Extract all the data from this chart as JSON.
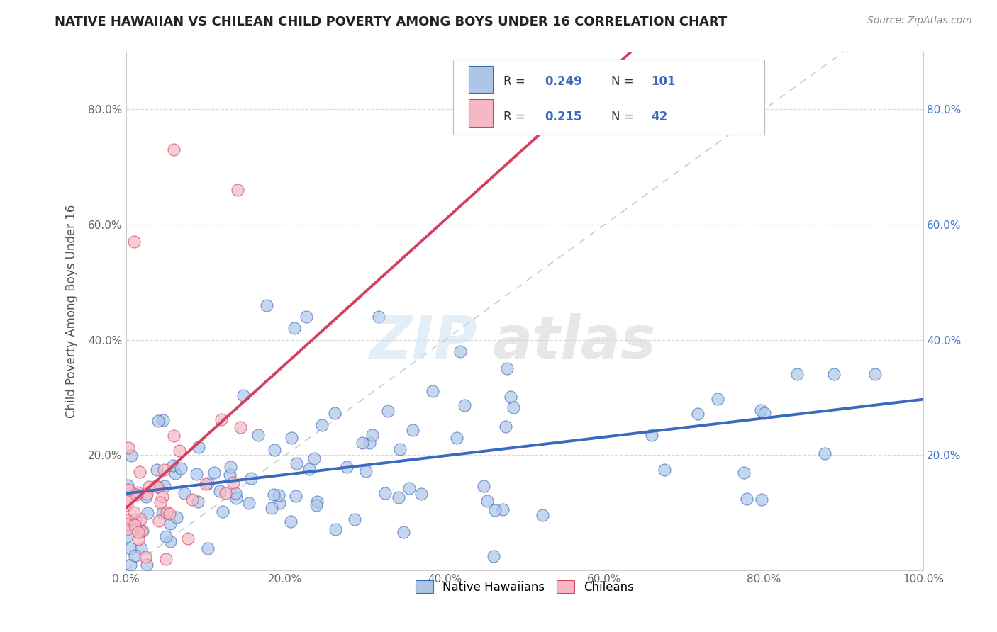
{
  "title": "NATIVE HAWAIIAN VS CHILEAN CHILD POVERTY AMONG BOYS UNDER 16 CORRELATION CHART",
  "source": "Source: ZipAtlas.com",
  "ylabel": "Child Poverty Among Boys Under 16",
  "R_native": 0.249,
  "N_native": 101,
  "R_chilean": 0.215,
  "N_chilean": 42,
  "native_color": "#adc6e8",
  "chilean_color": "#f5b8c4",
  "native_line_color": "#3a6abf",
  "chilean_line_color": "#d44060",
  "diagonal_color": "#cccccc",
  "xlim": [
    0.0,
    1.0
  ],
  "ylim": [
    0.0,
    0.9
  ],
  "xtick_vals": [
    0.0,
    0.2,
    0.4,
    0.6,
    0.8,
    1.0
  ],
  "xtick_labels": [
    "0.0%",
    "20.0%",
    "40.0%",
    "60.0%",
    "80.0%",
    "100.0%"
  ],
  "ytick_vals": [
    0.0,
    0.2,
    0.4,
    0.6,
    0.8
  ],
  "ytick_labels": [
    "",
    "20.0%",
    "40.0%",
    "60.0%",
    "80.0%"
  ],
  "legend_labels": [
    "Native Hawaiians",
    "Chileans"
  ]
}
